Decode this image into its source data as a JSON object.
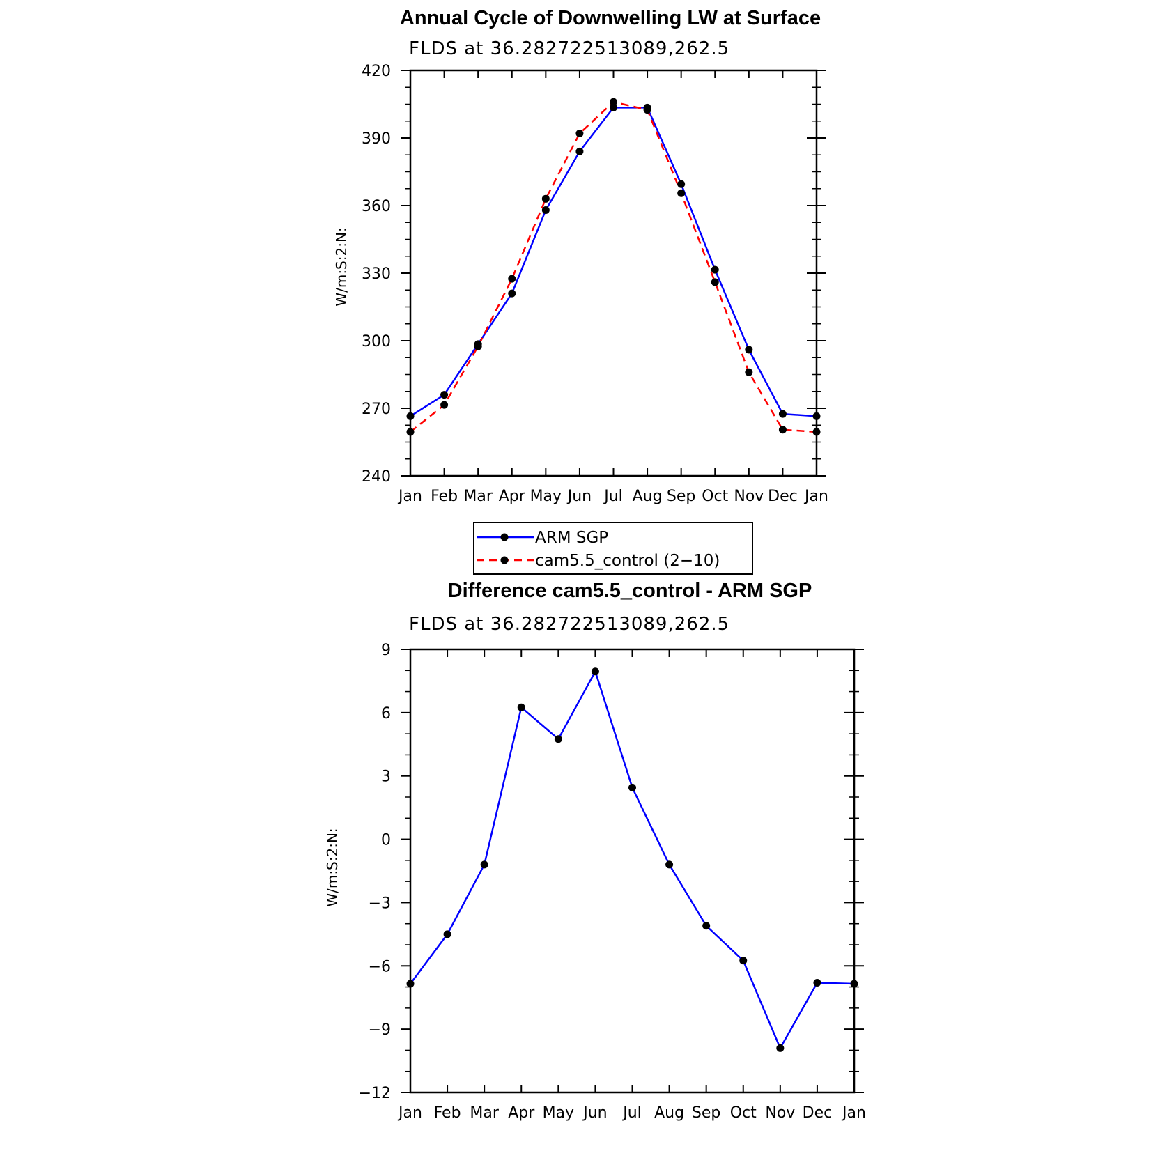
{
  "chart_data": [
    {
      "type": "line",
      "title": "Annual Cycle of Downwelling LW at Surface",
      "subtitle": "FLDS at 36.282722513089,262.5",
      "ylabel": "W/m:S:2:N:",
      "xlabel": "",
      "categories": [
        "Jan",
        "Feb",
        "Mar",
        "Apr",
        "May",
        "Jun",
        "Jul",
        "Aug",
        "Sep",
        "Oct",
        "Nov",
        "Dec",
        "Jan"
      ],
      "ylim": [
        240,
        420
      ],
      "yticks": [
        240,
        270,
        300,
        330,
        360,
        390,
        420
      ],
      "series": [
        {
          "name": "ARM SGP",
          "color": "#0000ff",
          "dash": "solid",
          "values": [
            266.5,
            276,
            298.5,
            321,
            358,
            384,
            403.5,
            403.5,
            369.5,
            331.5,
            296,
            267.5,
            266.5
          ]
        },
        {
          "name": "cam5.5_control (2−10)",
          "color": "#ff0000",
          "dash": "dashed",
          "values": [
            259.5,
            271.5,
            297.5,
            327.5,
            363,
            392,
            406,
            402.5,
            365.5,
            326,
            286,
            260.5,
            259.5
          ]
        }
      ],
      "legend": "bottom-center",
      "grid": false
    },
    {
      "type": "line",
      "title": "Difference cam5.5_control - ARM SGP",
      "subtitle": "FLDS at 36.282722513089,262.5",
      "ylabel": "W/m:S:2:N:",
      "xlabel": "",
      "categories": [
        "Jan",
        "Feb",
        "Mar",
        "Apr",
        "May",
        "Jun",
        "Jul",
        "Aug",
        "Sep",
        "Oct",
        "Nov",
        "Dec",
        "Jan"
      ],
      "ylim": [
        -12,
        9
      ],
      "yticks": [
        -12,
        -9,
        -6,
        -3,
        0,
        3,
        6,
        9
      ],
      "series": [
        {
          "color": "#0000ff",
          "dash": "solid",
          "values": [
            -6.85,
            -4.5,
            -1.2,
            6.25,
            4.75,
            7.95,
            2.45,
            -1.2,
            -4.1,
            -5.75,
            -9.9,
            -6.8,
            -6.85
          ]
        }
      ],
      "grid": false
    }
  ]
}
